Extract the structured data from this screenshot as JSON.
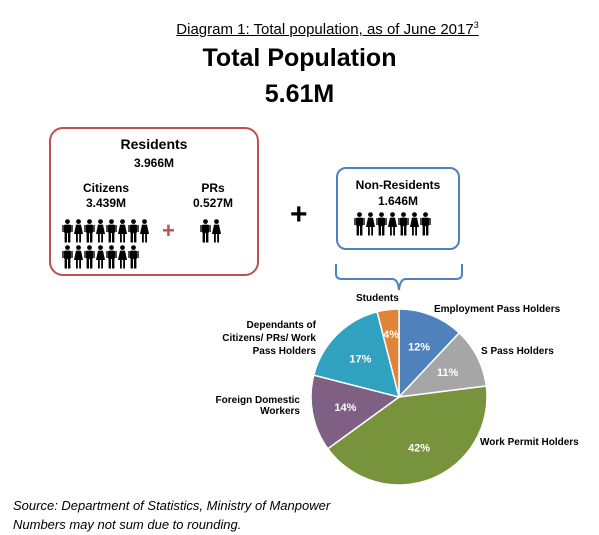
{
  "caption": {
    "text": "Diagram 1: Total population, as of June 2017",
    "footnote_marker": "3"
  },
  "title": "Total Population",
  "total_value": "5.61M",
  "residents": {
    "label": "Residents",
    "value": "3.966M",
    "citizens": {
      "label": "Citizens",
      "value": "3.439M"
    },
    "prs": {
      "label": "PRs",
      "value": "0.527M"
    },
    "plus_symbol": "+"
  },
  "plus_symbol": "+",
  "non_residents": {
    "label": "Non-Residents",
    "value": "1.646M"
  },
  "colors": {
    "residents_border": "#c0504d",
    "non_residents_border": "#4f81bd",
    "plus_red": "#c0504d"
  },
  "chart_data": {
    "type": "pie",
    "slices": [
      {
        "label": "Employment Pass Holders",
        "value": 12,
        "display": "12%",
        "color": "#4f81bd"
      },
      {
        "label": "S Pass Holders",
        "value": 11,
        "display": "11%",
        "color": "#a6a6a6"
      },
      {
        "label": "Work Permit Holders",
        "value": 42,
        "display": "42%",
        "color": "#77933c"
      },
      {
        "label": "Foreign Domestic Workers",
        "value": 14,
        "display": "14%",
        "color": "#7f6084"
      },
      {
        "label": "Dependants of Citizens/ PRs/ Work Pass Holders",
        "value": 17,
        "display": "17%",
        "color": "#31a1c0"
      },
      {
        "label": "Students",
        "value": 4,
        "display": "4%",
        "color": "#e0843a"
      }
    ],
    "label_lines": {
      "employment": [
        "Employment Pass Holders"
      ],
      "spass": [
        "S Pass Holders"
      ],
      "workpermit": [
        "Work Permit Holders"
      ],
      "fdw": [
        "Foreign Domestic",
        "Workers"
      ],
      "dependants": [
        "Dependants of",
        "Citizens/ PRs/ Work",
        "Pass Holders"
      ],
      "students": [
        "Students"
      ]
    }
  },
  "source": {
    "line1": "Source: Department of Statistics, Ministry of Manpower",
    "line2": "Numbers may not sum due to rounding."
  }
}
